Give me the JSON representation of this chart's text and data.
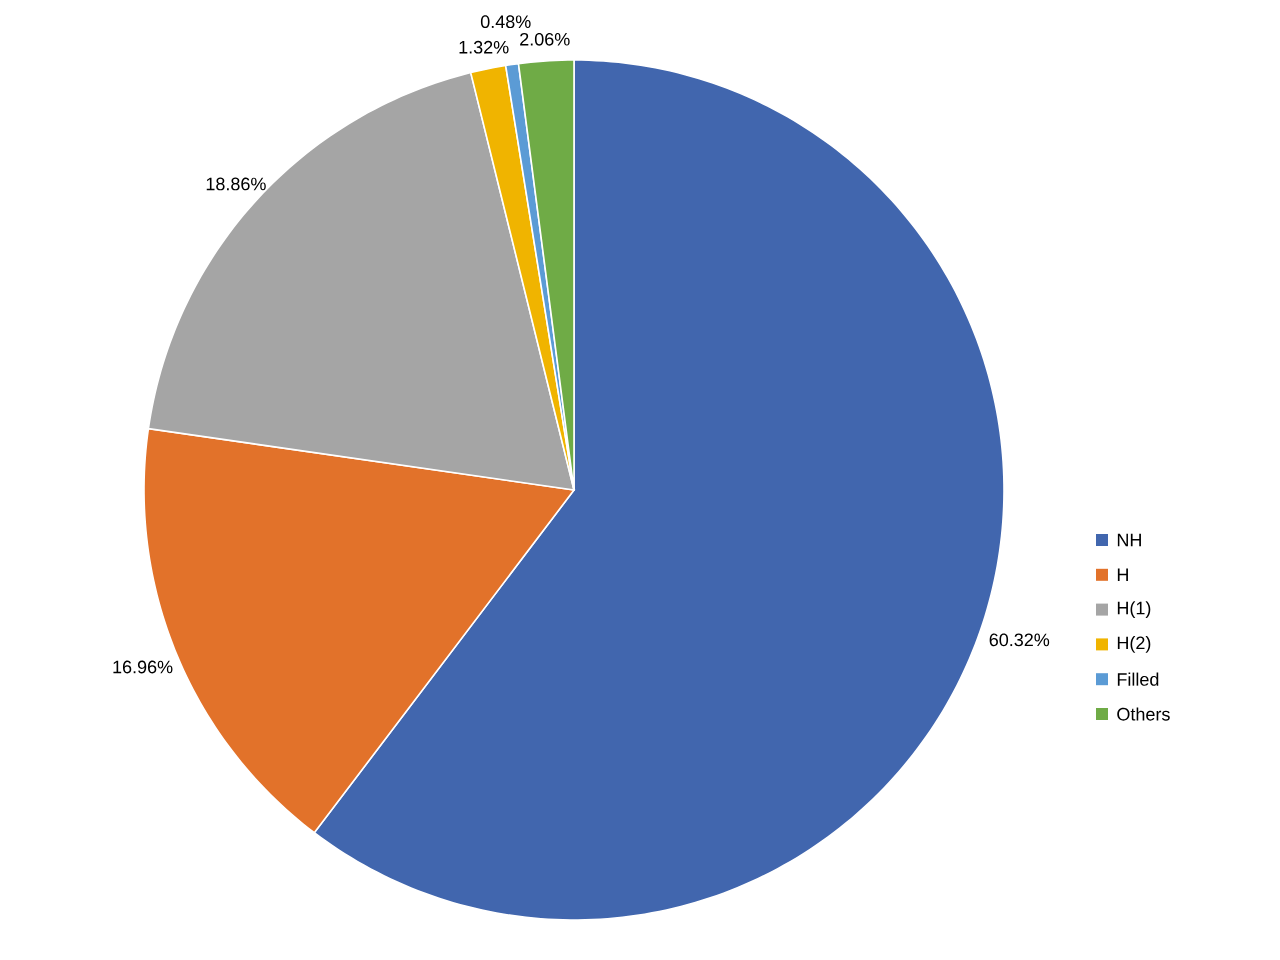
{
  "chart_data": {
    "type": "pie",
    "categories": [
      "NH",
      "H",
      "H(1)",
      "H(2)",
      "Filled",
      "Others"
    ],
    "values": [
      60.32,
      16.96,
      18.86,
      1.32,
      0.48,
      2.06
    ],
    "value_labels": [
      "60.32%",
      "16.96%",
      "18.86%",
      "1.32%",
      "0.48%",
      "2.06%"
    ],
    "colors": [
      "#4166ae",
      "#e2722a",
      "#a5a5a5",
      "#f0b400",
      "#5b9bd5",
      "#6fab46"
    ],
    "legend": "right"
  }
}
